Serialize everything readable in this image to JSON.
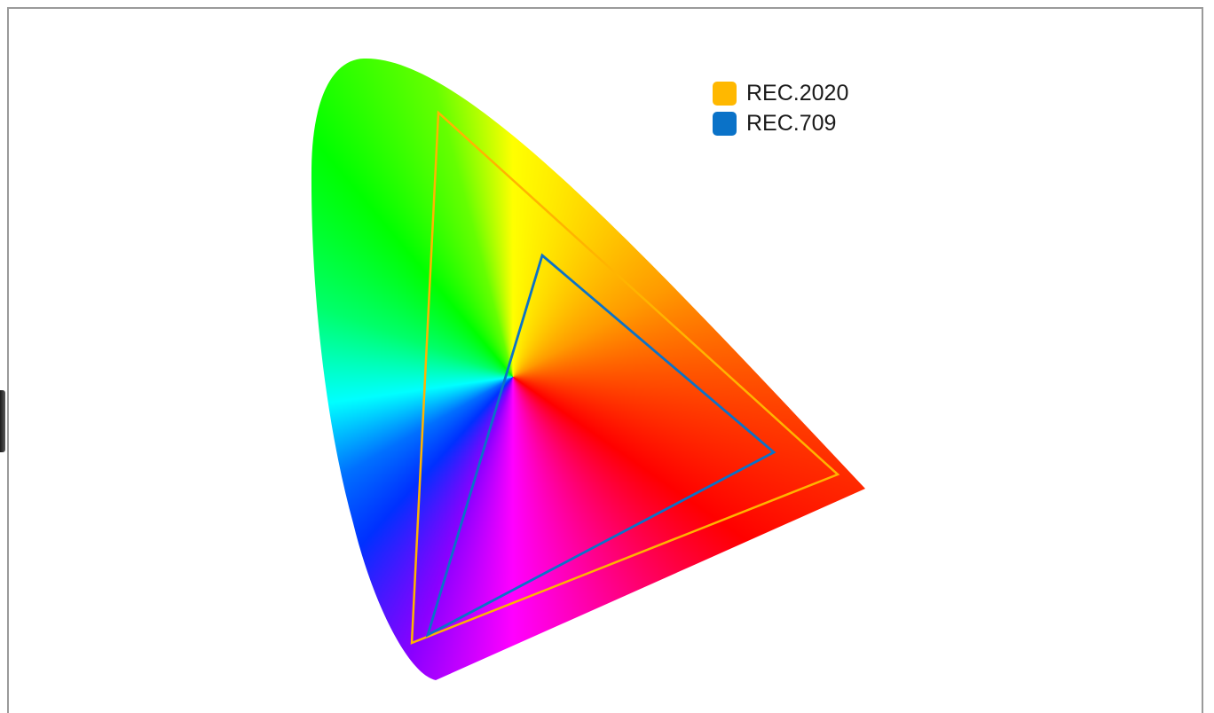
{
  "legend": {
    "items": [
      {
        "label": "REC.2020",
        "color": "#FFB800"
      },
      {
        "label": "REC.709",
        "color": "#0A72C8"
      }
    ]
  },
  "colors": {
    "rec2020_stroke": "#FFB400",
    "rec709_stroke": "#0A72C8",
    "frame_border": "#9A9A9A"
  }
}
